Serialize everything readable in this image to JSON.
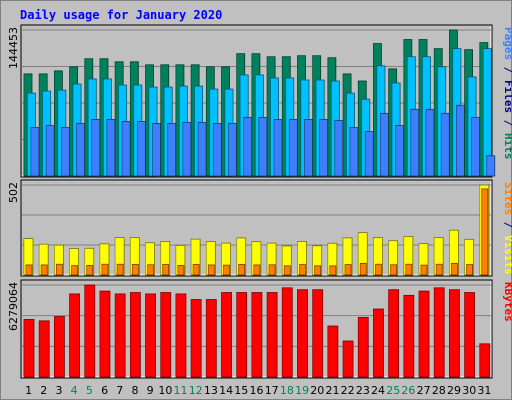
{
  "chart_data": {
    "type": "bar",
    "title": "Daily usage for January 2020",
    "categories": [
      "1",
      "2",
      "3",
      "4",
      "5",
      "6",
      "7",
      "8",
      "9",
      "10",
      "11",
      "12",
      "13",
      "14",
      "15",
      "16",
      "17",
      "18",
      "19",
      "20",
      "21",
      "22",
      "23",
      "24",
      "25",
      "26",
      "27",
      "28",
      "29",
      "30",
      "31"
    ],
    "weekend_days": [
      "4",
      "5",
      "11",
      "12",
      "18",
      "19",
      "25",
      "26"
    ],
    "panels": [
      {
        "name": "hits",
        "ymax_label": "144453",
        "ymax": 144453,
        "side_labels": [
          {
            "text": "Pages",
            "color": "#3f7fff"
          },
          {
            "text": " / ",
            "color": "#000080"
          },
          {
            "text": "Files",
            "color": "#000080"
          },
          {
            "text": " / ",
            "color": "#000080"
          },
          {
            "text": "Hits",
            "color": "#00805c"
          }
        ],
        "series": [
          {
            "name": "Hits",
            "color": "#00805c",
            "values": [
              101000,
              101000,
              104000,
              108000,
              116000,
              116000,
              113000,
              113000,
              110000,
              110000,
              110000,
              110000,
              108000,
              108000,
              121000,
              121000,
              118000,
              118000,
              119000,
              119000,
              117000,
              101000,
              94000,
              131000,
              106000,
              135000,
              135000,
              126000,
              144453,
              125000,
              132000
            ]
          },
          {
            "name": "Files",
            "color": "#00c0ff",
            "values": [
              82000,
              84000,
              85000,
              91000,
              96000,
              96000,
              90000,
              90000,
              88000,
              88000,
              89000,
              89000,
              86000,
              86000,
              100000,
              100000,
              97000,
              97000,
              95000,
              95000,
              94000,
              82000,
              76000,
              109000,
              92000,
              118000,
              118000,
              108000,
              126000,
              98000,
              126000
            ]
          },
          {
            "name": "Pages",
            "color": "#3f7fff",
            "values": [
              48000,
              50000,
              48000,
              52000,
              56000,
              56000,
              54000,
              54000,
              52000,
              52000,
              53000,
              53000,
              52000,
              52000,
              58000,
              58000,
              56000,
              56000,
              56000,
              56000,
              55000,
              48000,
              44000,
              62000,
              50000,
              66000,
              66000,
              62000,
              70000,
              58000,
              20000
            ]
          }
        ]
      },
      {
        "name": "visits",
        "ymax_label": "502",
        "ymax": 502,
        "side_labels": [
          {
            "text": "Sites",
            "color": "#ff8000"
          },
          {
            "text": " / ",
            "color": "#000080"
          },
          {
            "text": "Visits",
            "color": "#ffff00"
          }
        ],
        "series": [
          {
            "name": "Visits",
            "color": "#ffff00",
            "values": [
              203,
              172,
              167,
              147,
              149,
              174,
              209,
              209,
              180,
              187,
              165,
              200,
              186,
              178,
              207,
              186,
              178,
              162,
              187,
              163,
              177,
              207,
              236,
              209,
              191,
              215,
              175,
              209,
              250,
              199,
              502
            ]
          },
          {
            "name": "Sites",
            "color": "#ff8000",
            "values": [
              56,
              56,
              60,
              52,
              53,
              60,
              60,
              59,
              57,
              59,
              53,
              59,
              56,
              55,
              59,
              56,
              57,
              51,
              58,
              51,
              51,
              58,
              65,
              60,
              57,
              60,
              55,
              60,
              65,
              58,
              480
            ]
          }
        ]
      },
      {
        "name": "kbytes",
        "ymax_label": "6279064",
        "ymax": 6279064,
        "side_labels": [
          {
            "text": "KBytes",
            "color": "#ff0000"
          }
        ],
        "series": [
          {
            "name": "KBytes",
            "color": "#ff0000",
            "values": [
              3928000,
              3832000,
              4128000,
              5670000,
              6279064,
              5862000,
              5670000,
              5766000,
              5670000,
              5766000,
              5670000,
              5286000,
              5286000,
              5766000,
              5766000,
              5766000,
              5766000,
              6086000,
              5958000,
              5958000,
              3480000,
              2456000,
              4064000,
              4640000,
              5958000,
              5574000,
              5862000,
              6086000,
              5958000,
              5766000,
              2264000
            ]
          }
        ]
      }
    ]
  }
}
